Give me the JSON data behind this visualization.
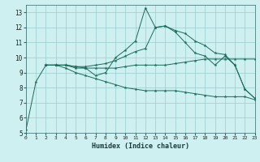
{
  "title": "",
  "xlabel": "Humidex (Indice chaleur)",
  "ylabel": "",
  "bg_color": "#cff0f0",
  "grid_color": "#99cccc",
  "line_color": "#1a6b5a",
  "xlim": [
    0,
    23
  ],
  "ylim": [
    5,
    13.5
  ],
  "yticks": [
    5,
    6,
    7,
    8,
    9,
    10,
    11,
    12,
    13
  ],
  "xticks": [
    0,
    1,
    2,
    3,
    4,
    5,
    6,
    7,
    8,
    9,
    10,
    11,
    12,
    13,
    14,
    15,
    16,
    17,
    18,
    19,
    20,
    21,
    22,
    23
  ],
  "lines": [
    {
      "x": [
        0,
        1,
        2,
        3,
        4,
        5,
        6,
        7,
        8,
        9,
        10,
        11,
        12,
        13,
        14,
        15,
        16,
        17,
        18,
        19,
        20,
        21,
        22,
        23
      ],
      "y": [
        5.2,
        8.4,
        9.5,
        9.5,
        9.5,
        9.3,
        9.3,
        8.8,
        9.0,
        10.0,
        10.5,
        11.1,
        13.3,
        12.0,
        12.1,
        11.7,
        11.0,
        10.3,
        10.1,
        9.5,
        10.1,
        9.5,
        7.9,
        7.3
      ]
    },
    {
      "x": [
        2,
        3,
        4,
        5,
        6,
        7,
        8,
        9,
        10,
        11,
        12,
        13,
        14,
        15,
        16,
        17,
        18,
        19,
        20,
        21,
        22,
        23
      ],
      "y": [
        9.5,
        9.5,
        9.5,
        9.4,
        9.4,
        9.5,
        9.6,
        9.8,
        10.1,
        10.4,
        10.6,
        12.0,
        12.1,
        11.8,
        11.6,
        11.1,
        10.8,
        10.3,
        10.2,
        9.5,
        7.9,
        7.3
      ]
    },
    {
      "x": [
        2,
        3,
        4,
        5,
        6,
        7,
        8,
        9,
        10,
        11,
        12,
        13,
        14,
        15,
        16,
        17,
        18,
        19,
        20,
        21,
        22,
        23
      ],
      "y": [
        9.5,
        9.5,
        9.5,
        9.4,
        9.3,
        9.3,
        9.3,
        9.3,
        9.4,
        9.5,
        9.5,
        9.5,
        9.5,
        9.6,
        9.7,
        9.8,
        9.9,
        9.9,
        9.9,
        9.9,
        9.9,
        9.9
      ]
    },
    {
      "x": [
        2,
        3,
        4,
        5,
        6,
        7,
        8,
        9,
        10,
        11,
        12,
        13,
        14,
        15,
        16,
        17,
        18,
        19,
        20,
        21,
        22,
        23
      ],
      "y": [
        9.5,
        9.5,
        9.3,
        9.0,
        8.8,
        8.6,
        8.4,
        8.2,
        8.0,
        7.9,
        7.8,
        7.8,
        7.8,
        7.8,
        7.7,
        7.6,
        7.5,
        7.4,
        7.4,
        7.4,
        7.4,
        7.2
      ]
    }
  ]
}
